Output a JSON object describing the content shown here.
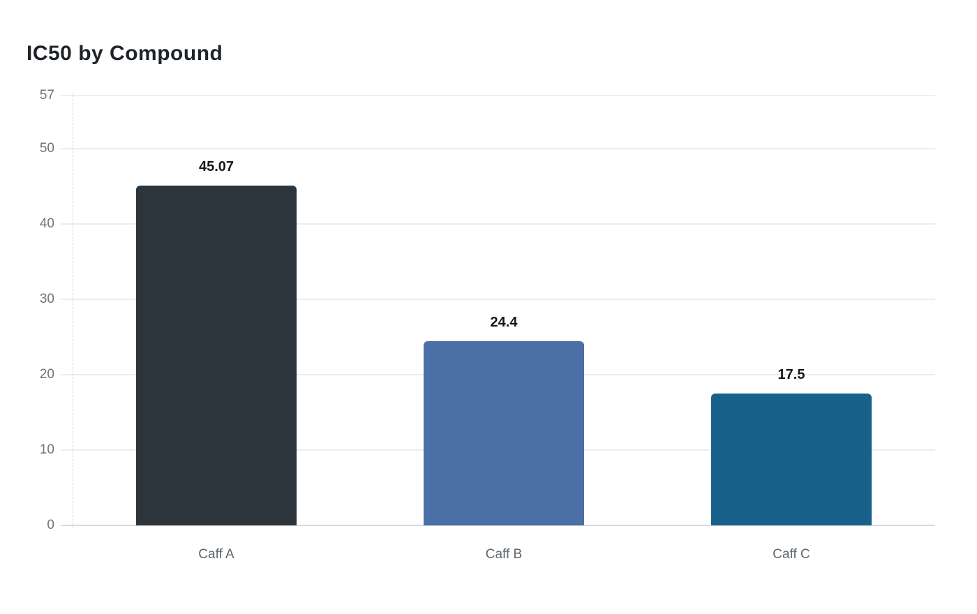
{
  "title": "IC50 by Compound",
  "chart_data": {
    "type": "bar",
    "title": "IC50 by Compound",
    "categories": [
      "Caff A",
      "Caff B",
      "Caff C"
    ],
    "values": [
      45.07,
      24.4,
      17.5
    ],
    "value_labels": [
      "45.07",
      "24.4",
      "17.5"
    ],
    "bar_colors": [
      "#2c353b",
      "#4b6fa6",
      "#17618a"
    ],
    "xlabel": "",
    "ylabel": "",
    "ylim": [
      0,
      57
    ],
    "yticks": [
      0,
      10,
      20,
      30,
      40,
      50,
      57
    ],
    "grid": true,
    "legend_position": "none"
  },
  "colors": {
    "background": "#ffffff",
    "title_text": "#1f242a",
    "gridline": "#ededed",
    "axis_baseline": "#d6dade",
    "axis_dotted_line": "#c9cdd2",
    "tick_text": "#6a737c",
    "category_text": "#5d6770",
    "value_label_text": "#15181b"
  }
}
